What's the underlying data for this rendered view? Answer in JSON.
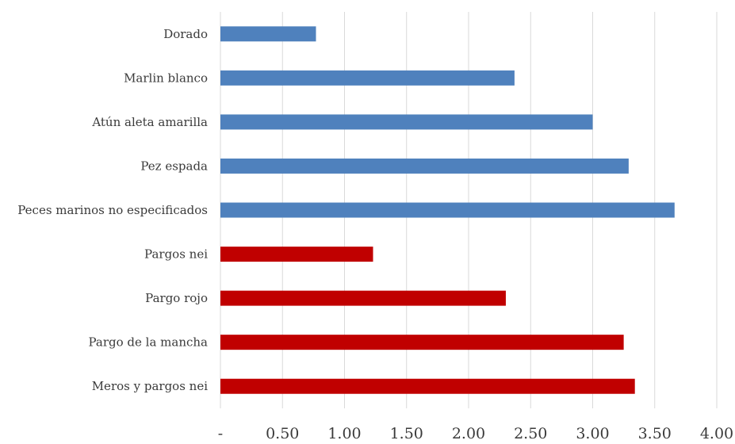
{
  "chart_data": {
    "type": "bar",
    "orientation": "horizontal",
    "title": "",
    "xlabel": "",
    "ylabel": "",
    "xlim": [
      0,
      4
    ],
    "grid": true,
    "x_ticks": [
      {
        "value": 0,
        "label": "-"
      },
      {
        "value": 0.5,
        "label": "0.50"
      },
      {
        "value": 1.0,
        "label": "1.00"
      },
      {
        "value": 1.5,
        "label": "1.50"
      },
      {
        "value": 2.0,
        "label": "2.00"
      },
      {
        "value": 2.5,
        "label": "2.50"
      },
      {
        "value": 3.0,
        "label": "3.00"
      },
      {
        "value": 3.5,
        "label": "3.50"
      },
      {
        "value": 4.0,
        "label": "4.00"
      }
    ],
    "bars": [
      {
        "category": "Dorado",
        "value": 0.77,
        "color": "#4f81bd"
      },
      {
        "category": "Marlin blanco",
        "value": 2.37,
        "color": "#4f81bd"
      },
      {
        "category": "Atún aleta amarilla",
        "value": 3.0,
        "color": "#4f81bd"
      },
      {
        "category": "Pez espada",
        "value": 3.29,
        "color": "#4f81bd"
      },
      {
        "category": "Peces marinos no especificados",
        "value": 3.66,
        "color": "#4f81bd"
      },
      {
        "category": "Pargos nei",
        "value": 1.23,
        "color": "#c00000"
      },
      {
        "category": "Pargo rojo",
        "value": 2.3,
        "color": "#c00000"
      },
      {
        "category": "Pargo de la mancha",
        "value": 3.25,
        "color": "#c00000"
      },
      {
        "category": "Meros y pargos nei",
        "value": 3.34,
        "color": "#c00000"
      }
    ]
  }
}
